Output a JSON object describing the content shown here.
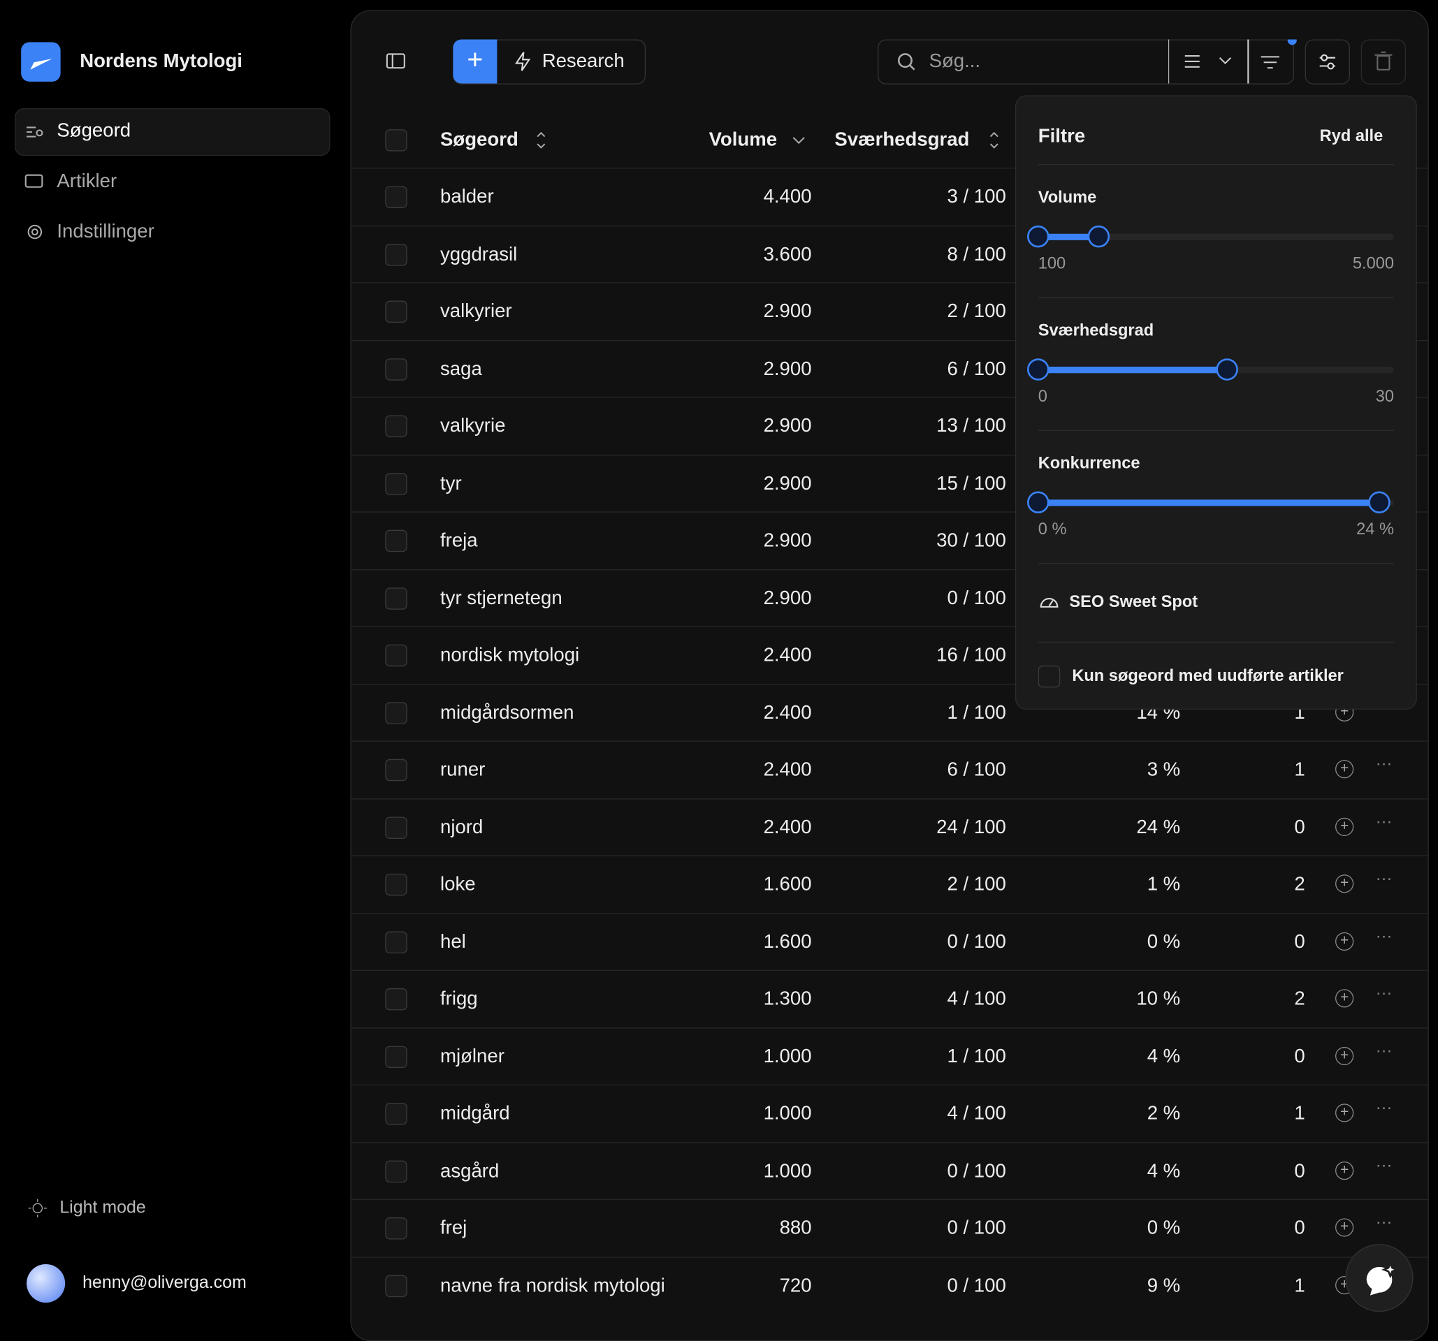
{
  "sidebar": {
    "brand": "Nordens Mytologi",
    "nav": [
      "Søgeord",
      "Artikler",
      "Indstillinger"
    ],
    "theme": "Light mode",
    "user": "henny@oliverga.com"
  },
  "toolbar": {
    "research": "Research",
    "search": "Søg..."
  },
  "table": {
    "headers": [
      "Søgeord",
      "Volume",
      "Sværhedsgrad"
    ],
    "rows": [
      [
        "balder",
        "4.400",
        "3 / 100"
      ],
      [
        "yggdrasil",
        "3.600",
        "8 / 100"
      ],
      [
        "valkyrier",
        "2.900",
        "2 / 100"
      ],
      [
        "saga",
        "2.900",
        "6 / 100"
      ],
      [
        "valkyrie",
        "2.900",
        "13 / 100"
      ],
      [
        "tyr",
        "2.900",
        "15 / 100"
      ],
      [
        "freja",
        "2.900",
        "30 / 100"
      ],
      [
        "tyr stjernetegn",
        "2.900",
        "0 / 100"
      ],
      [
        "nordisk mytologi",
        "2.400",
        "16 / 100"
      ],
      [
        "midgårdsormen",
        "2.400",
        "1 / 100",
        "14 %",
        "1"
      ],
      [
        "runer",
        "2.400",
        "6 / 100",
        "3 %",
        "1"
      ],
      [
        "njord",
        "2.400",
        "24 / 100",
        "24 %",
        "0"
      ],
      [
        "loke",
        "1.600",
        "2 / 100",
        "1 %",
        "2"
      ],
      [
        "hel",
        "1.600",
        "0 / 100",
        "0 %",
        "0"
      ],
      [
        "frigg",
        "1.300",
        "4 / 100",
        "10 %",
        "2"
      ],
      [
        "mjølner",
        "1.000",
        "1 / 100",
        "4 %",
        "0"
      ],
      [
        "midgård",
        "1.000",
        "4 / 100",
        "2 %",
        "1"
      ],
      [
        "asgård",
        "1.000",
        "0 / 100",
        "4 %",
        "0"
      ],
      [
        "frej",
        "880",
        "0 / 100",
        "0 %",
        "0"
      ],
      [
        "navne fra nordisk mytologi",
        "720",
        "0 / 100",
        "9 %",
        "1"
      ]
    ]
  },
  "filters": {
    "title": "Filtre",
    "clear": "Ryd alle",
    "sliders": [
      {
        "label": "Volume",
        "min": "100",
        "max": "5.000"
      },
      {
        "label": "Sværhedsgrad",
        "min": "0",
        "max": "30"
      },
      {
        "label": "Konkurrence",
        "min": "0 %",
        "max": "24 %"
      }
    ],
    "sweet_spot": "SEO Sweet Spot",
    "only_unwritten": "Kun søgeord med uudførte artikler"
  }
}
